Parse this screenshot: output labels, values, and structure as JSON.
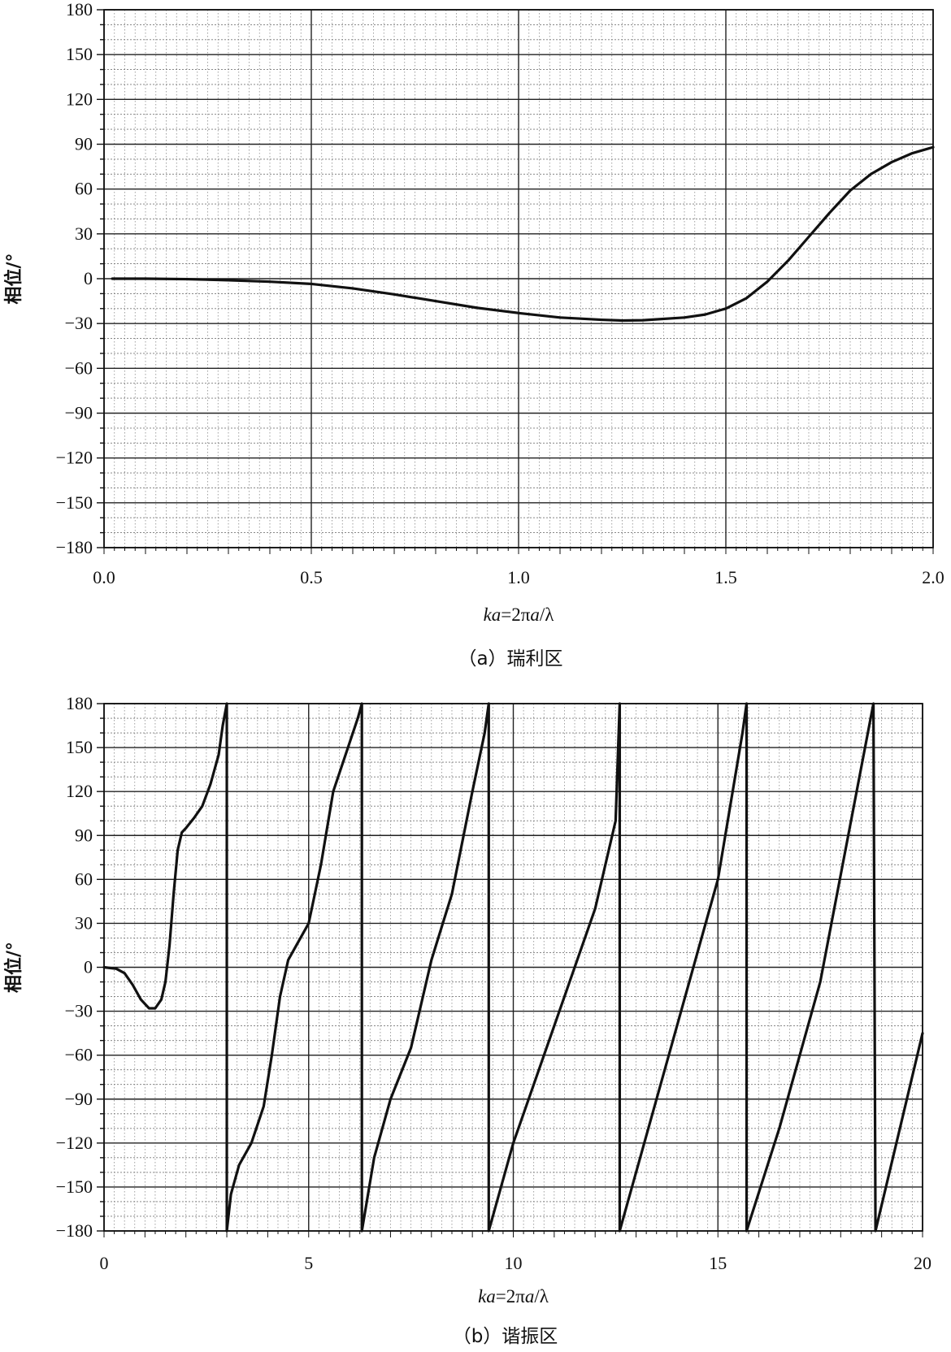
{
  "chart_data": [
    {
      "id": "a",
      "type": "line",
      "caption": "（a）瑞利区",
      "ylabel": "相位/°",
      "xlabel_parts": [
        {
          "text": "ka",
          "italic": true
        },
        {
          "text": "=2π",
          "italic": false
        },
        {
          "text": "a",
          "italic": true
        },
        {
          "text": "/λ",
          "italic": false
        }
      ],
      "xlim": [
        0,
        2.0
      ],
      "ylim": [
        -180,
        180
      ],
      "xticks": [
        0.0,
        0.5,
        1.0,
        1.5,
        2.0
      ],
      "xtick_labels": [
        "0.0",
        "0.5",
        "1.0",
        "1.5",
        "2.0"
      ],
      "yticks": [
        180,
        150,
        120,
        90,
        60,
        30,
        0,
        -30,
        -60,
        -90,
        -120,
        -150,
        -180
      ],
      "ytick_labels": [
        "180",
        "150",
        "120",
        "90",
        "60",
        "30",
        "0",
        "−30",
        "−60",
        "−90",
        "−120",
        "−150",
        "−180"
      ],
      "grid": true,
      "series": [
        {
          "x": [
            0.02,
            0.1,
            0.2,
            0.3,
            0.4,
            0.5,
            0.6,
            0.7,
            0.8,
            0.9,
            1.0,
            1.1,
            1.2,
            1.25,
            1.3,
            1.4,
            1.45,
            1.5,
            1.55,
            1.6,
            1.65,
            1.7,
            1.75,
            1.8,
            1.85,
            1.9,
            1.95,
            2.0
          ],
          "y": [
            0,
            0,
            -0.3,
            -1,
            -2,
            -3.5,
            -6.5,
            -10.5,
            -15,
            -19.5,
            -23,
            -26,
            -27.5,
            -28,
            -27.8,
            -26,
            -24,
            -20,
            -13,
            -2,
            12,
            28,
            44,
            59,
            70,
            78,
            84,
            88
          ]
        }
      ]
    },
    {
      "id": "b",
      "type": "line",
      "caption": "（b）谐振区",
      "ylabel": "相位/°",
      "xlabel_parts": [
        {
          "text": "ka",
          "italic": true
        },
        {
          "text": "=2π",
          "italic": false
        },
        {
          "text": "a",
          "italic": true
        },
        {
          "text": "/λ",
          "italic": false
        }
      ],
      "xlim": [
        0,
        20
      ],
      "ylim": [
        -180,
        180
      ],
      "xticks": [
        0,
        5,
        10,
        15,
        20
      ],
      "xtick_labels": [
        "0",
        "5",
        "10",
        "15",
        "20"
      ],
      "yticks": [
        180,
        150,
        120,
        90,
        60,
        30,
        0,
        -30,
        -60,
        -90,
        -120,
        -150,
        -180
      ],
      "ytick_labels": [
        "180",
        "150",
        "120",
        "90",
        "60",
        "30",
        "0",
        "−30",
        "−60",
        "−90",
        "−120",
        "−150",
        "−180"
      ],
      "grid": true,
      "series": [
        {
          "x": [
            0,
            0.3,
            0.5,
            0.7,
            0.9,
            1.1,
            1.25,
            1.4,
            1.5,
            1.6,
            1.7,
            1.8,
            1.9,
            2.0,
            2.2,
            2.4,
            2.6,
            2.8,
            2.9,
            3.0,
            3.0,
            3.1,
            3.3,
            3.6,
            3.9,
            4.1,
            4.3,
            4.5,
            4.7,
            5.0,
            5.3,
            5.6,
            5.9,
            6.2,
            6.3,
            6.3,
            6.6,
            7.0,
            7.5,
            8.0,
            8.5,
            9.0,
            9.3,
            9.4,
            9.4,
            10.0,
            11.0,
            12.0,
            12.5,
            12.6,
            12.6,
            13.5,
            14.5,
            15.0,
            15.6,
            15.7,
            15.7,
            16.5,
            17.5,
            18.8,
            18.8,
            18.85,
            20.0
          ],
          "y": [
            0,
            -1,
            -4,
            -12,
            -22,
            -28,
            -28,
            -22,
            -10,
            15,
            50,
            80,
            92,
            95,
            102,
            110,
            125,
            145,
            165,
            180,
            -180,
            -155,
            -135,
            -120,
            -95,
            -60,
            -20,
            5,
            15,
            30,
            70,
            120,
            145,
            170,
            180,
            -180,
            -130,
            -90,
            -55,
            5,
            50,
            120,
            160,
            180,
            -180,
            -120,
            -40,
            40,
            100,
            180,
            -180,
            -90,
            10,
            60,
            160,
            180,
            -180,
            -110,
            -10,
            180,
            180,
            -180,
            -45
          ]
        }
      ]
    }
  ]
}
